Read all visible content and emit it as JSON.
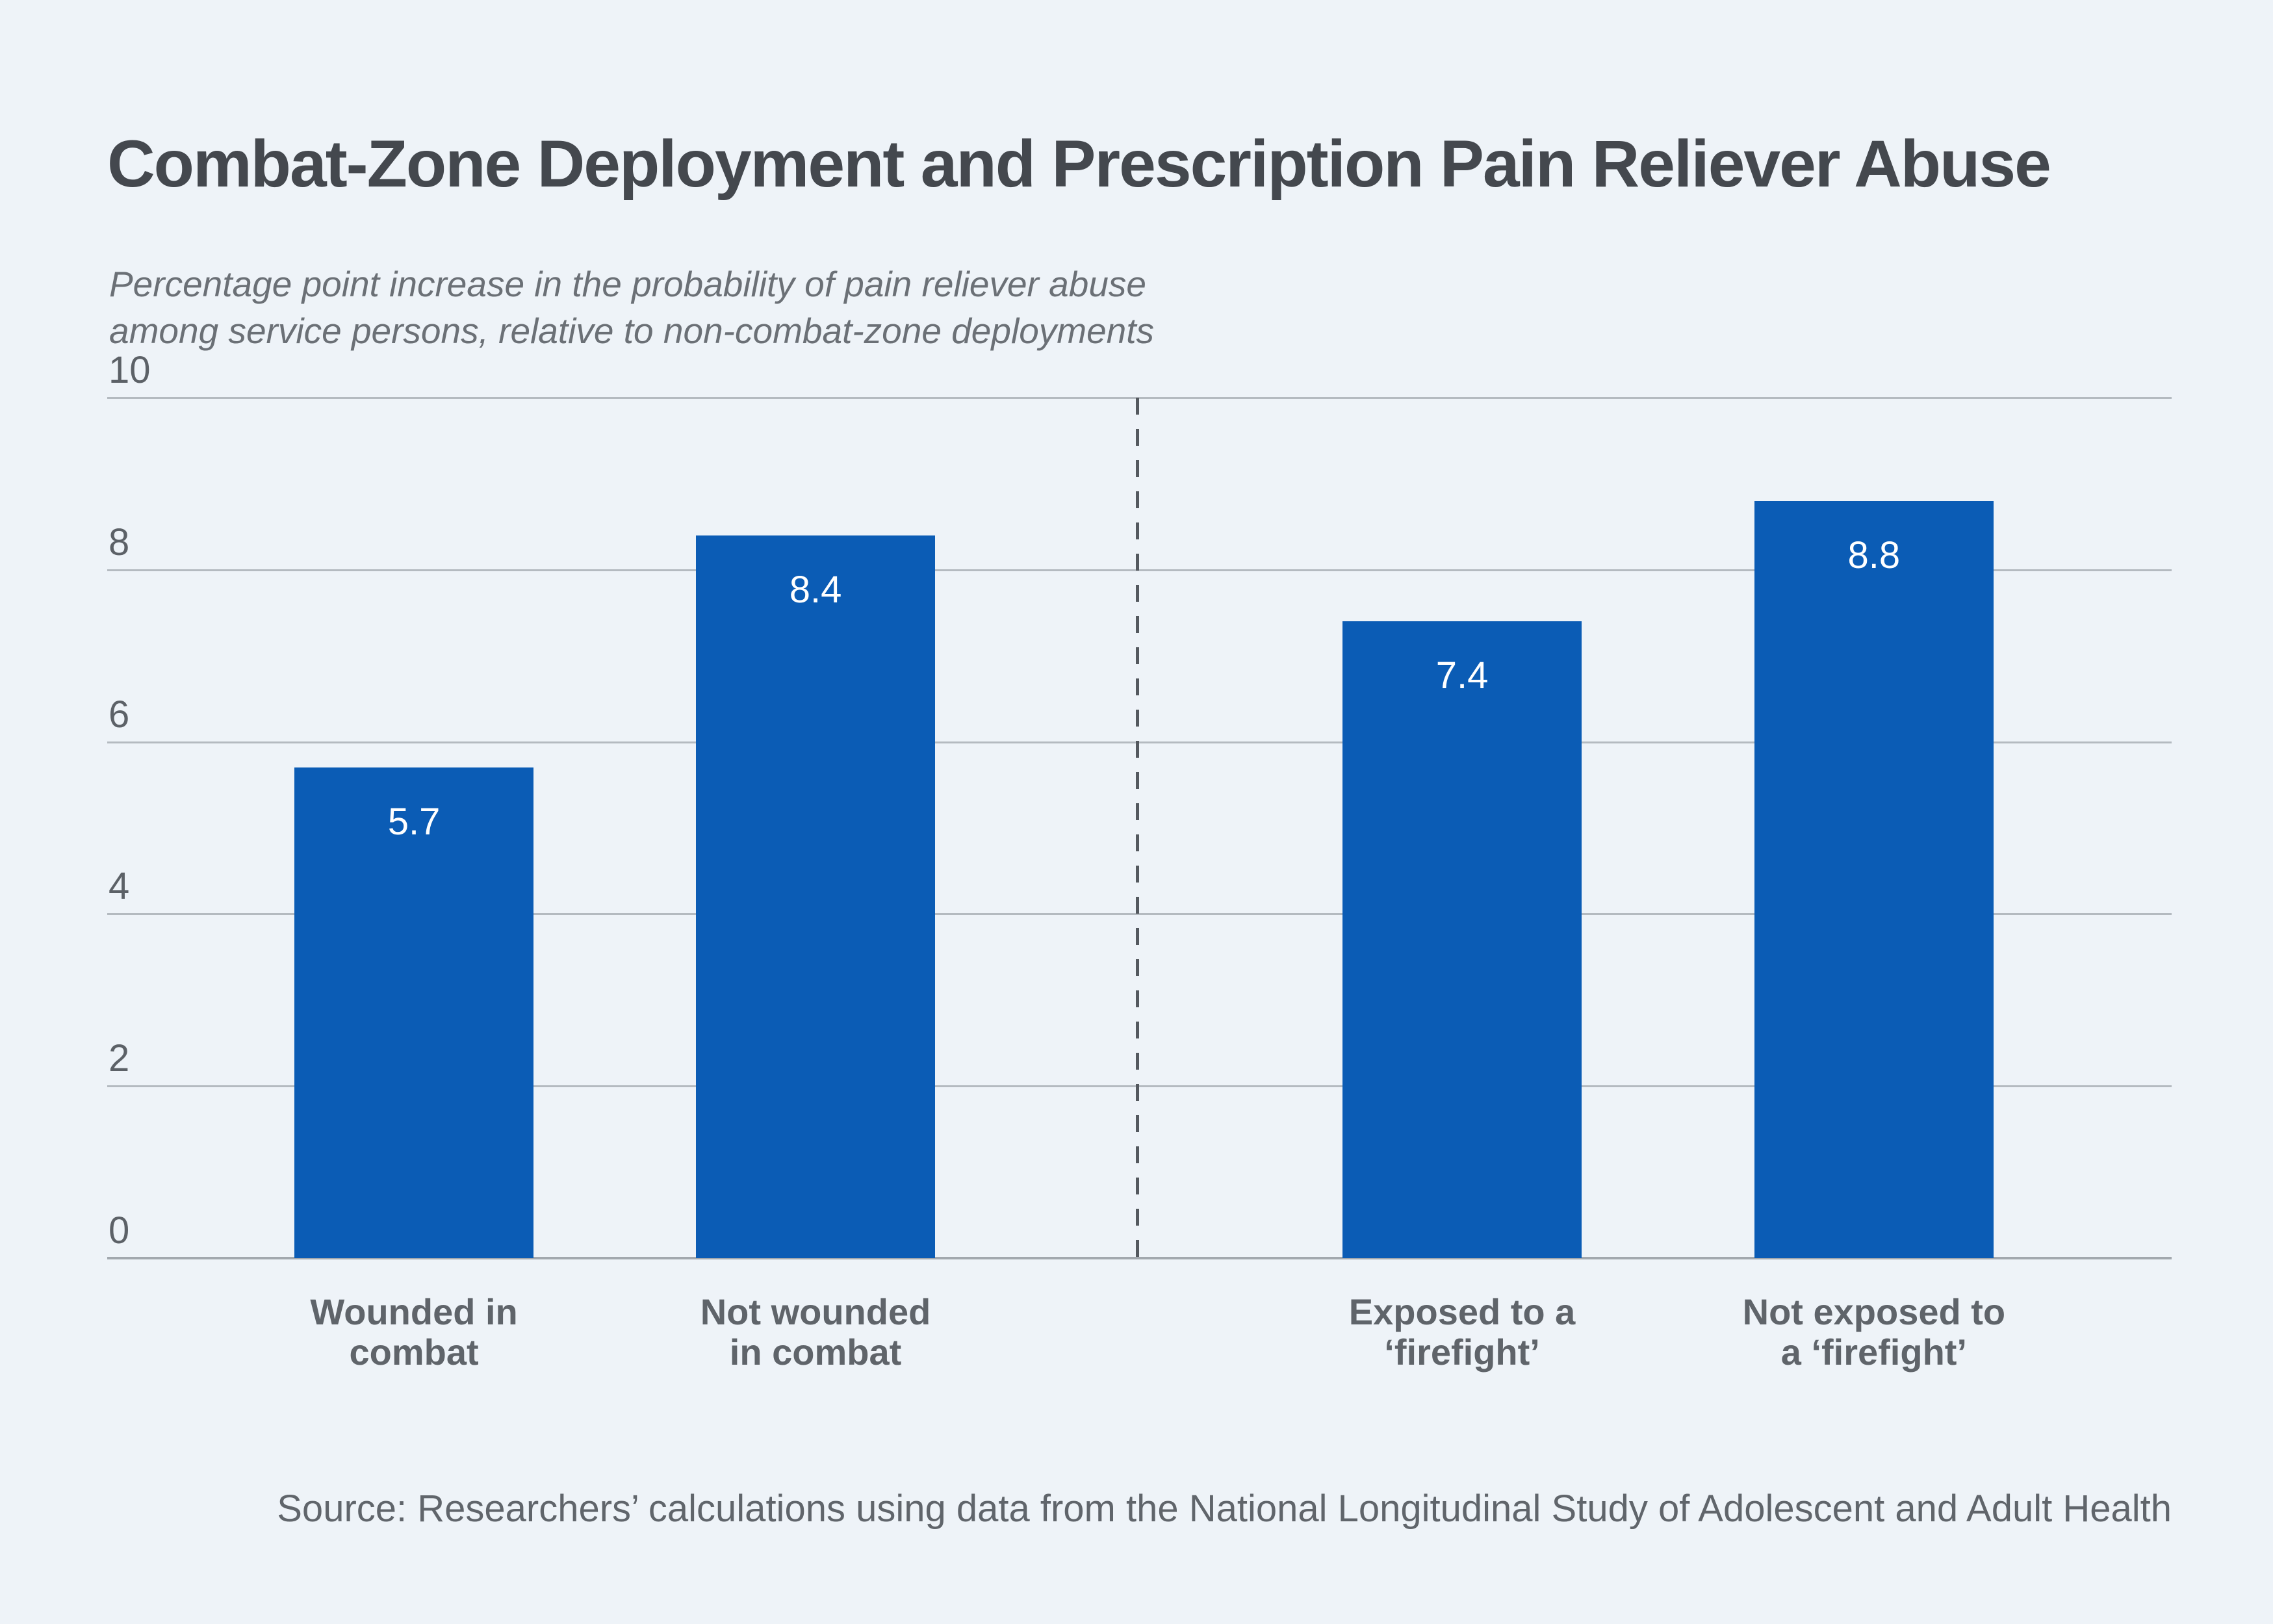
{
  "page": {
    "background": "#EEF3F8"
  },
  "header": {
    "title": "Combat-Zone Deployment and Prescription Pain Reliever Abuse",
    "subtitle": "Percentage point increase in the probability of pain reliever abuse\namong service persons, relative to non-combat-zone deployments"
  },
  "source": {
    "text": "Source: Researchers’ calculations using data from the National Longitudinal Study of Adolescent and Adult Health"
  },
  "chart_data": {
    "type": "bar",
    "title": "Combat-Zone Deployment and Prescription Pain Reliever Abuse",
    "subtitle": "Percentage point increase in the probability of pain reliever abuse among service persons, relative to non-combat-zone deployments",
    "categories": [
      "Wounded in\ncombat",
      "Not wounded\nin combat",
      "Exposed to a\n‘firefight’",
      "Not exposed to\na ‘firefight’"
    ],
    "values": [
      5.7,
      8.4,
      7.4,
      8.8
    ],
    "data_labels": [
      "5.7",
      "8.4",
      "7.4",
      "8.8"
    ],
    "xlabel": "",
    "ylabel": "",
    "ylim": [
      0,
      10
    ],
    "yticks": [
      10,
      8,
      6,
      4,
      2,
      0
    ],
    "grid": true,
    "legend": "none",
    "bar_color": "#0B5CB5",
    "value_label_color": "#FFFFFF",
    "gridline_color": "#B4BAC0",
    "divider_between_groups": true,
    "divider_x_pct": 49.9,
    "bar_centers_pct": [
      14.86,
      34.31,
      65.63,
      85.58
    ],
    "bar_width_pct": 11.58
  }
}
